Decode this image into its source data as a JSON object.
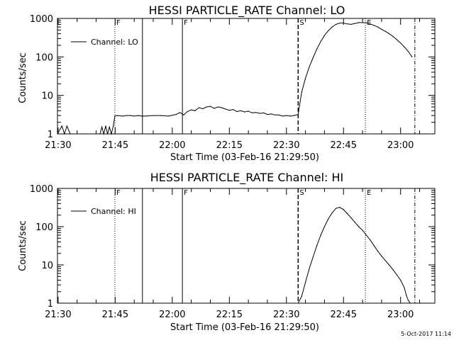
{
  "footer": {
    "timestamp": "5-Oct-2017 11:14"
  },
  "chart_data": [
    {
      "type": "line",
      "title": "HESSI PARTICLE_RATE Channel: LO",
      "xlabel": "Start Time (03-Feb-16 21:29:50)",
      "ylabel": "Counts/sec",
      "yscale": "log",
      "xlim": [
        "21:29:50",
        "23:09:00"
      ],
      "ylim": [
        1,
        1000
      ],
      "x_tick_labels": [
        "21:30",
        "21:45",
        "22:00",
        "22:15",
        "22:30",
        "22:45",
        "23:00"
      ],
      "y_tick_labels": [
        "1",
        "10",
        "100",
        "1000"
      ],
      "legend": {
        "placement": "top-left",
        "entries": [
          "Channel: LO"
        ]
      },
      "markers": [
        {
          "time": "21:44:55",
          "label": "F",
          "style": "dotted"
        },
        {
          "time": "21:52:10",
          "label": "",
          "style": "solid"
        },
        {
          "time": "22:02:40",
          "label": "F",
          "style": "solid"
        },
        {
          "time": "22:33:05",
          "label": "S",
          "style": "dashed"
        },
        {
          "time": "22:50:45",
          "label": "E",
          "style": "dotted"
        },
        {
          "time": "23:03:45",
          "label": "",
          "style": "dashdot"
        }
      ],
      "series": [
        {
          "name": "Channel: LO",
          "x": [
            "21:29:50",
            "21:31:00",
            "21:31:40",
            "21:32:20",
            "21:33:10",
            "21:34:00",
            "21:35:00",
            "21:36:00",
            "21:37:00",
            "21:38:00",
            "21:39:00",
            "21:40:00",
            "21:41:00",
            "21:41:30",
            "21:42:00",
            "21:42:30",
            "21:43:00",
            "21:43:30",
            "21:44:00",
            "21:44:30",
            "21:44:55",
            "21:45:30",
            "21:47:00",
            "21:48:00",
            "21:49:00",
            "21:50:00",
            "21:51:00",
            "21:52:00",
            "21:53:00",
            "21:55:00",
            "21:57:00",
            "21:59:00",
            "22:01:00",
            "22:02:00",
            "22:03:00",
            "22:04:00",
            "22:05:00",
            "22:06:00",
            "22:07:00",
            "22:08:00",
            "22:09:00",
            "22:10:00",
            "22:11:00",
            "22:12:00",
            "22:13:00",
            "22:14:00",
            "22:15:00",
            "22:16:00",
            "22:17:00",
            "22:18:00",
            "22:19:00",
            "22:20:00",
            "22:21:00",
            "22:22:00",
            "22:23:00",
            "22:24:00",
            "22:25:00",
            "22:26:00",
            "22:27:00",
            "22:28:00",
            "22:29:00",
            "22:30:00",
            "22:31:00",
            "22:32:00",
            "22:33:05",
            "22:34:00",
            "22:35:00",
            "22:36:00",
            "22:37:00",
            "22:38:00",
            "22:39:00",
            "22:40:00",
            "22:41:00",
            "22:42:00",
            "22:43:00",
            "22:44:00",
            "22:45:00",
            "22:46:00",
            "22:47:00",
            "22:48:00",
            "22:49:00",
            "22:50:00",
            "22:51:00",
            "22:52:00",
            "22:53:00",
            "22:54:00",
            "22:55:00",
            "22:56:00",
            "22:57:00",
            "22:58:00",
            "22:59:00",
            "23:00:00",
            "23:01:00",
            "23:02:00",
            "23:03:00"
          ],
          "y": [
            1,
            1.6,
            1,
            1.6,
            1,
            1,
            1,
            1,
            1,
            1,
            1,
            1,
            1,
            1.5,
            1,
            1.6,
            1,
            1.5,
            1,
            1.6,
            2.9,
            3,
            2.9,
            3,
            3,
            2.9,
            3,
            2.9,
            2.9,
            3,
            3,
            2.9,
            3.2,
            3.6,
            3.1,
            3.8,
            4.2,
            4,
            4.8,
            4.5,
            5,
            5.2,
            4.6,
            5,
            4.8,
            4.4,
            4.1,
            4.3,
            3.8,
            4,
            3.7,
            3.9,
            3.5,
            3.6,
            3.4,
            3.5,
            3.2,
            3.3,
            3.1,
            3.1,
            2.9,
            3,
            2.9,
            3,
            3.2,
            12,
            28,
            55,
            95,
            160,
            250,
            360,
            480,
            600,
            700,
            760,
            760,
            720,
            700,
            740,
            780,
            780,
            770,
            720,
            660,
            600,
            520,
            460,
            400,
            340,
            280,
            230,
            180,
            140,
            100
          ]
        }
      ]
    },
    {
      "type": "line",
      "title": "HESSI PARTICLE_RATE Channel: HI",
      "xlabel": "Start Time (03-Feb-16 21:29:50)",
      "ylabel": "Counts/sec",
      "yscale": "log",
      "xlim": [
        "21:29:50",
        "23:09:00"
      ],
      "ylim": [
        1,
        1000
      ],
      "x_tick_labels": [
        "21:30",
        "21:45",
        "22:00",
        "22:15",
        "22:30",
        "22:45",
        "23:00"
      ],
      "y_tick_labels": [
        "1",
        "10",
        "100",
        "1000"
      ],
      "legend": {
        "placement": "top-left",
        "entries": [
          "Channel: HI"
        ]
      },
      "markers": [
        {
          "time": "21:44:55",
          "label": "F",
          "style": "dotted"
        },
        {
          "time": "21:52:10",
          "label": "",
          "style": "solid"
        },
        {
          "time": "22:02:40",
          "label": "F",
          "style": "solid"
        },
        {
          "time": "22:33:05",
          "label": "S",
          "style": "dashed"
        },
        {
          "time": "22:50:45",
          "label": "E",
          "style": "dotted"
        },
        {
          "time": "23:03:45",
          "label": "",
          "style": "dashdot"
        }
      ],
      "series": [
        {
          "name": "Channel: HI",
          "x": [
            "22:33:05",
            "22:34:00",
            "22:35:00",
            "22:36:00",
            "22:37:00",
            "22:38:00",
            "22:39:00",
            "22:40:00",
            "22:41:00",
            "22:42:00",
            "22:43:00",
            "22:44:00",
            "22:45:00",
            "22:46:00",
            "22:47:00",
            "22:48:00",
            "22:49:00",
            "22:50:00",
            "22:51:00",
            "22:52:00",
            "22:53:00",
            "22:54:00",
            "22:55:00",
            "22:56:00",
            "22:57:00",
            "22:58:00",
            "22:59:00",
            "23:00:00",
            "23:01:00",
            "23:01:30",
            "23:02:00",
            "23:02:30"
          ],
          "y": [
            1,
            1.5,
            3.5,
            8,
            16,
            32,
            60,
            100,
            160,
            230,
            300,
            320,
            280,
            220,
            170,
            130,
            100,
            80,
            60,
            45,
            32,
            23,
            17,
            13,
            10,
            7.5,
            5.5,
            4,
            2.5,
            1.6,
            1.2,
            1
          ]
        }
      ]
    }
  ]
}
